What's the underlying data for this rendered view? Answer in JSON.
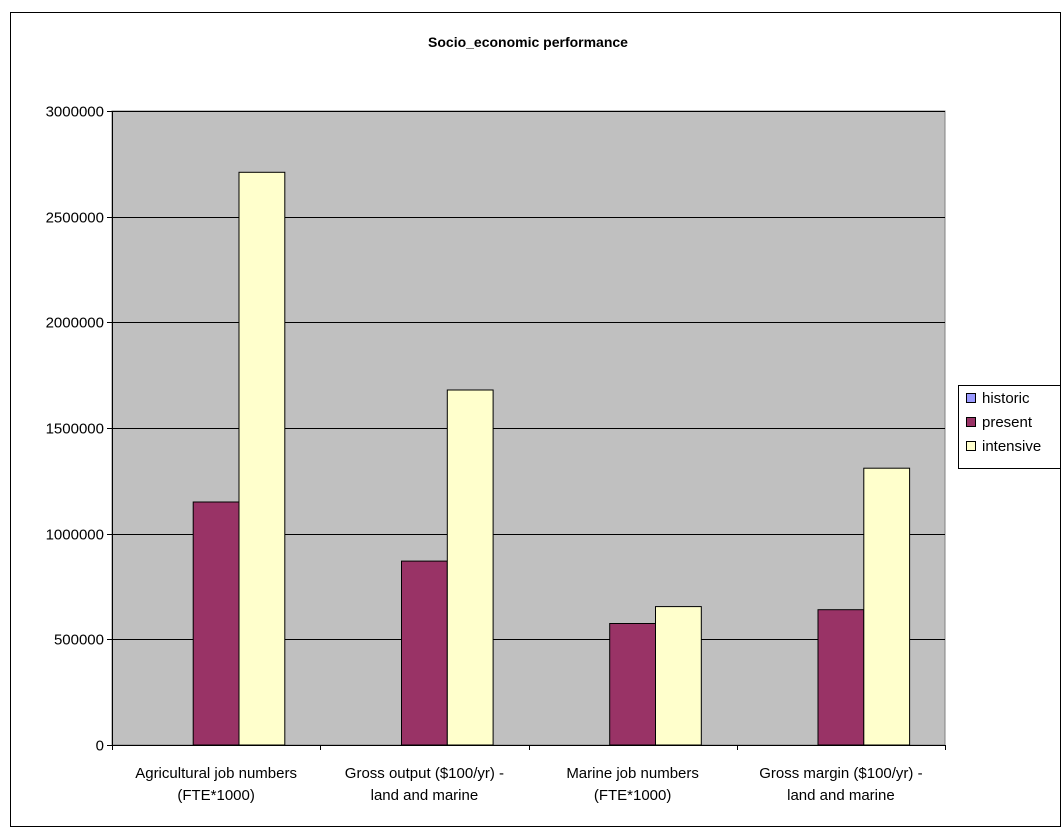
{
  "chart_data": {
    "type": "bar",
    "title": "Socio_economic performance",
    "xlabel": "",
    "ylabel": "",
    "ylim": [
      0,
      3000000
    ],
    "yticks": [
      0,
      500000,
      1000000,
      1500000,
      2000000,
      2500000,
      3000000
    ],
    "categories": [
      [
        "Agricultural job numbers",
        "(FTE*1000)"
      ],
      [
        "Gross output ($100/yr) -",
        "land and marine"
      ],
      [
        "Marine job numbers",
        "(FTE*1000)"
      ],
      [
        "Gross margin ($100/yr) -",
        "land and marine"
      ]
    ],
    "series": [
      {
        "name": "historic",
        "color": "#9999ff",
        "values": [
          0,
          0,
          0,
          0
        ]
      },
      {
        "name": "present",
        "color": "#993366",
        "values": [
          1150000,
          870000,
          575000,
          640000
        ]
      },
      {
        "name": "intensive",
        "color": "#ffffcc",
        "values": [
          2710000,
          1680000,
          655000,
          1310000
        ]
      }
    ],
    "grid": true,
    "legend": "right",
    "plot_background": "#c0c0c0"
  }
}
